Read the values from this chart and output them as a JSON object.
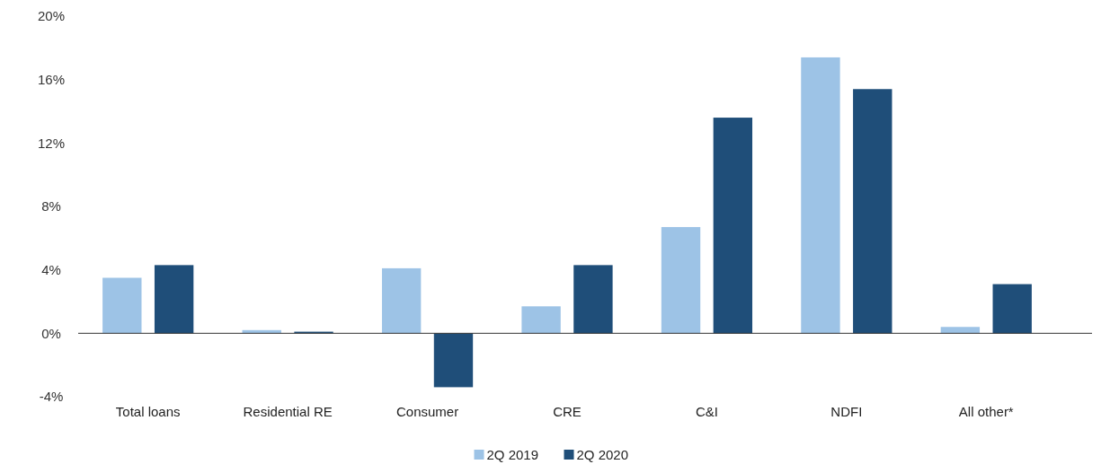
{
  "chart_data": {
    "type": "bar",
    "categories": [
      "Total loans",
      "Residential RE",
      "Consumer",
      "CRE",
      "C&I",
      "NDFI",
      "All other*"
    ],
    "series": [
      {
        "name": "2Q 2019",
        "color": "#9dc3e6",
        "values": [
          3.5,
          0.2,
          4.1,
          1.7,
          6.7,
          17.4,
          0.4
        ]
      },
      {
        "name": "2Q 2020",
        "color": "#1f4e79",
        "values": [
          4.3,
          0.1,
          -3.4,
          4.3,
          13.6,
          15.4,
          3.1
        ]
      }
    ],
    "ylim": [
      -4,
      20
    ],
    "yticks": [
      {
        "value": -4,
        "label": "-4%"
      },
      {
        "value": 0,
        "label": "0%"
      },
      {
        "value": 4,
        "label": "4%"
      },
      {
        "value": 8,
        "label": "8%"
      },
      {
        "value": 12,
        "label": "12%"
      },
      {
        "value": 16,
        "label": "16%"
      },
      {
        "value": 20,
        "label": "20%"
      }
    ],
    "legend": "bottom"
  }
}
